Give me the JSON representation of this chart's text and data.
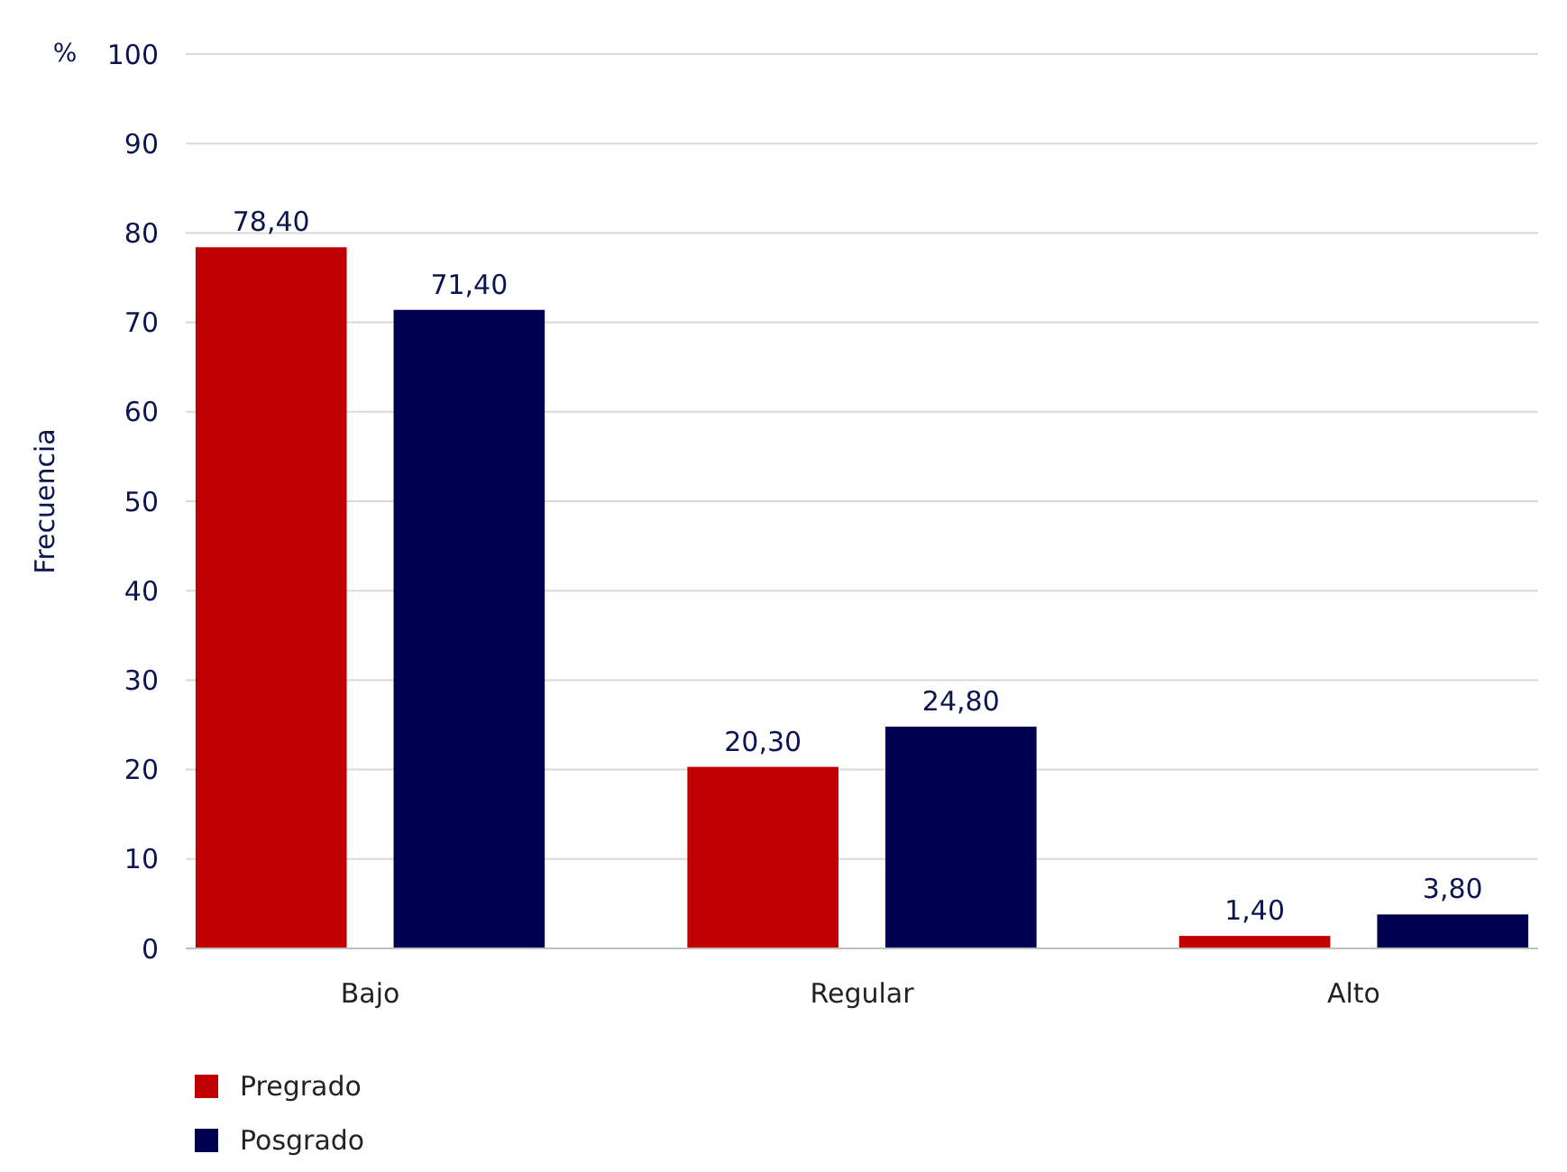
{
  "chart_data": {
    "type": "bar",
    "ylabel": "Frecuencia",
    "annotations": [
      "%"
    ],
    "categories": [
      "Bajo",
      "Regular",
      "Alto"
    ],
    "series": [
      {
        "name": "Pregrado",
        "color": "#c00000",
        "values": [
          78.4,
          20.3,
          1.4
        ],
        "value_labels": [
          "78,40",
          "20,30",
          "1,40"
        ]
      },
      {
        "name": "Posgrado",
        "color": "#000050",
        "values": [
          71.4,
          24.8,
          3.8
        ],
        "value_labels": [
          "71,40",
          "24,80",
          "3,80"
        ]
      }
    ],
    "ylim": [
      0,
      100
    ],
    "yticks": [
      0,
      10,
      20,
      30,
      40,
      50,
      60,
      70,
      80,
      90,
      100
    ],
    "grid": "y",
    "legend": "bottom left"
  }
}
